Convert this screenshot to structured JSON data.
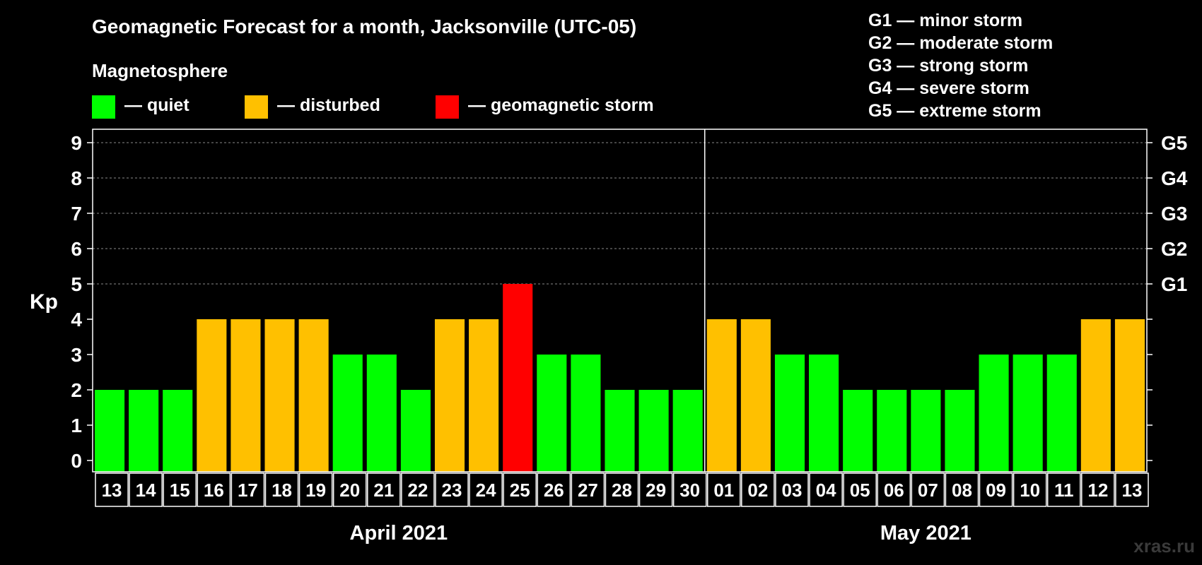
{
  "chart_data": {
    "type": "bar",
    "title": "Geomagnetic Forecast for a month, Jacksonville (UTC-05)",
    "legend": {
      "heading": "Magnetosphere",
      "items": [
        {
          "label": "— quiet",
          "color": "#00ff00"
        },
        {
          "label": "— disturbed",
          "color": "#ffc000"
        },
        {
          "label": "— geomagnetic storm",
          "color": "#ff0000"
        }
      ]
    },
    "storm_scale": [
      "G1 — minor storm",
      "G2 — moderate storm",
      "G3 — strong storm",
      "G4 — severe storm",
      "G5 — extreme storm"
    ],
    "ylabel": "Kp",
    "ylim": [
      0,
      9
    ],
    "yticks": [
      "0",
      "1",
      "2",
      "3",
      "4",
      "5",
      "6",
      "7",
      "8",
      "9"
    ],
    "right_ticks": [
      {
        "kp": 5,
        "label": "G1"
      },
      {
        "kp": 6,
        "label": "G2"
      },
      {
        "kp": 7,
        "label": "G3"
      },
      {
        "kp": 8,
        "label": "G4"
      },
      {
        "kp": 9,
        "label": "G5"
      }
    ],
    "categories": [
      "13",
      "14",
      "15",
      "16",
      "17",
      "18",
      "19",
      "20",
      "21",
      "22",
      "23",
      "24",
      "25",
      "26",
      "27",
      "28",
      "29",
      "30",
      "01",
      "02",
      "03",
      "04",
      "05",
      "06",
      "07",
      "08",
      "09",
      "10",
      "11",
      "12",
      "13"
    ],
    "values": [
      2,
      2,
      2,
      4,
      4,
      4,
      4,
      3,
      3,
      2,
      4,
      4,
      5,
      3,
      3,
      2,
      2,
      2,
      4,
      4,
      3,
      3,
      2,
      2,
      2,
      2,
      3,
      3,
      3,
      4,
      4
    ],
    "months": [
      {
        "label": "April 2021",
        "start": 0,
        "end": 17
      },
      {
        "label": "May 2021",
        "start": 18,
        "end": 30
      }
    ],
    "level_colors": {
      "quiet": "#00ff00",
      "disturbed": "#ffc000",
      "storm": "#ff0000"
    }
  },
  "watermark": "xras.ru"
}
